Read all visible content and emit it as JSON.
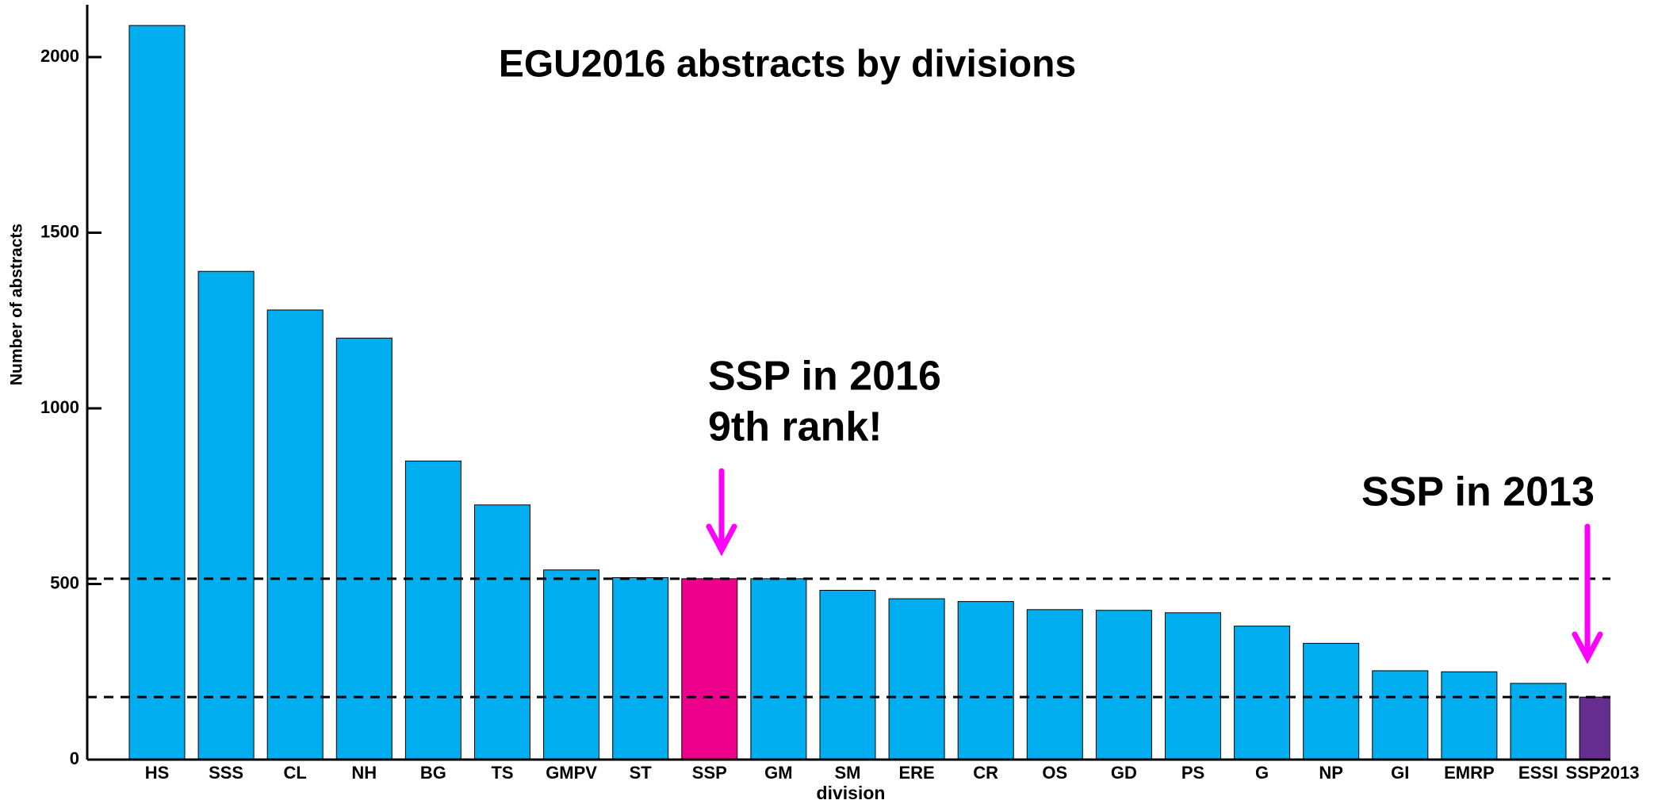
{
  "chart_data": {
    "type": "bar",
    "title": "EGU2016 abstracts by divisions",
    "x_label": "division",
    "y_label": "Number of abstracts",
    "categories": [
      "HS",
      "SSS",
      "CL",
      "NH",
      "BG",
      "TS",
      "GMPV",
      "ST",
      "SSP",
      "GM",
      "SM",
      "ERE",
      "CR",
      "OS",
      "GD",
      "PS",
      "G",
      "NP",
      "GI",
      "EMRP",
      "ESSI",
      "SSP2013"
    ],
    "values": [
      2090,
      1390,
      1280,
      1200,
      850,
      725,
      540,
      518,
      515,
      515,
      482,
      458,
      450,
      427,
      425,
      418,
      380,
      331,
      253,
      250,
      217,
      178
    ],
    "colors": [
      "#00aeef",
      "#00aeef",
      "#00aeef",
      "#00aeef",
      "#00aeef",
      "#00aeef",
      "#00aeef",
      "#00aeef",
      "#ec008c",
      "#00aeef",
      "#00aeef",
      "#00aeef",
      "#00aeef",
      "#00aeef",
      "#00aeef",
      "#00aeef",
      "#00aeef",
      "#00aeef",
      "#00aeef",
      "#00aeef",
      "#00aeef",
      "#662d91"
    ],
    "reference_lines": [
      515,
      178
    ],
    "annotations": [
      "SSP in 2016",
      "9th rank!",
      "SSP in 2013"
    ],
    "ylim": [
      0,
      2150
    ],
    "yticks": [
      0,
      500,
      1000,
      1500,
      2000
    ],
    "grid": false
  }
}
